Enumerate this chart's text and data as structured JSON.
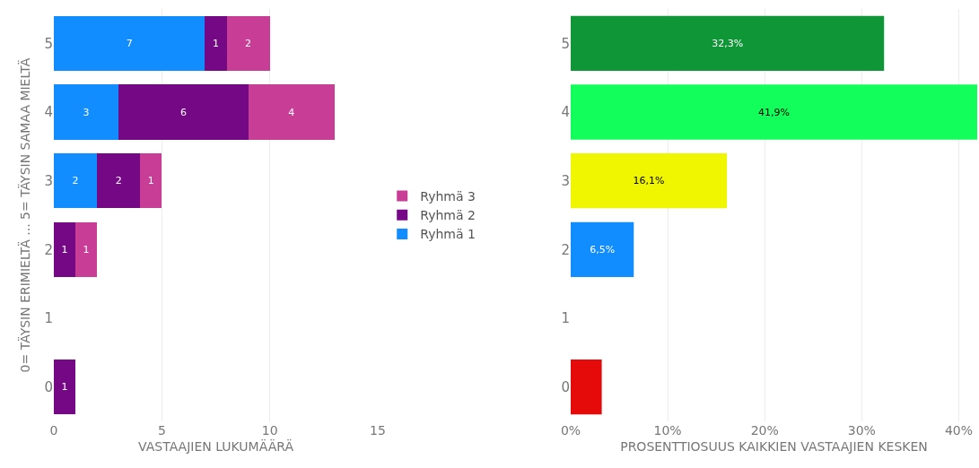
{
  "chart_data": [
    {
      "type": "bar",
      "orientation": "horizontal",
      "stacked": true,
      "categories": [
        "5",
        "4",
        "3",
        "2",
        "1",
        "0"
      ],
      "xlabel": "VASTAAJIEN LUKUMÄÄRÄ",
      "ylabel": "0= TÄYSIN ERIMIELTÄ ... 5= TÄYSIN SAMAA MIELTÄ",
      "xlim": [
        0,
        15
      ],
      "xticks": [
        0,
        5,
        10,
        15
      ],
      "grid": "x",
      "legend": "right",
      "data_labels": true,
      "series": [
        {
          "name": "Ryhmä 1",
          "color": "#118dff",
          "values": [
            7,
            3,
            2,
            null,
            null,
            null
          ]
        },
        {
          "name": "Ryhmä 2",
          "color": "#750985",
          "values": [
            1,
            6,
            2,
            1,
            null,
            1
          ]
        },
        {
          "name": "Ryhmä 3",
          "color": "#c83d95",
          "values": [
            2,
            4,
            1,
            1,
            null,
            null
          ]
        }
      ]
    },
    {
      "type": "bar",
      "orientation": "horizontal",
      "categories": [
        "5",
        "4",
        "3",
        "2",
        "1",
        "0"
      ],
      "xlabel": "PROSENTTIOSUUS KAIKKIEN VASTAAJIEN KESKEN",
      "xlim": [
        0,
        41.9
      ],
      "xticks": [
        {
          "value": 0,
          "label": "0%"
        },
        {
          "value": 10,
          "label": "10%"
        },
        {
          "value": 20,
          "label": "20%"
        },
        {
          "value": 30,
          "label": "30%"
        },
        {
          "value": 40,
          "label": "40%"
        }
      ],
      "grid": "x",
      "values": [
        32.3,
        41.9,
        16.1,
        6.5,
        null,
        3.2
      ],
      "colors": [
        "#0e9637",
        "#12ff5b",
        "#f0f500",
        "#118dff",
        "#000000",
        "#e60b0b"
      ],
      "value_labels": [
        "32,3%",
        "41,9%",
        "16,1%",
        "6,5%",
        null,
        null
      ]
    }
  ]
}
